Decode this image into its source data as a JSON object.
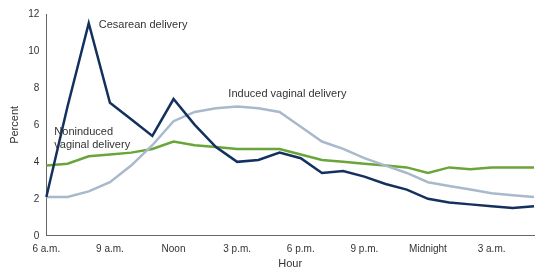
{
  "chart_data": {
    "type": "line",
    "x_label": "Hour",
    "y_label": "Percent",
    "categories": [
      "6 a.m.",
      null,
      null,
      "9 a.m.",
      null,
      null,
      "Noon",
      null,
      null,
      "3 p.m.",
      null,
      null,
      "6 p.m.",
      null,
      null,
      "9 p.m.",
      null,
      null,
      "Midnight",
      null,
      null,
      "3 a.m.",
      null,
      null
    ],
    "series": [
      {
        "name": "Cesarean delivery",
        "color": "#13305e",
        "values": [
          2.1,
          7.0,
          11.5,
          7.2,
          6.3,
          5.4,
          7.4,
          6.0,
          4.8,
          4.0,
          4.1,
          4.5,
          4.2,
          3.4,
          3.5,
          3.2,
          2.8,
          2.5,
          2.0,
          1.8,
          1.7,
          1.6,
          1.5,
          1.6
        ]
      },
      {
        "name": "Induced vaginal delivery",
        "color": "#a9b9cc",
        "values": [
          2.1,
          2.1,
          2.4,
          2.9,
          3.8,
          4.9,
          6.2,
          6.7,
          6.9,
          7.0,
          6.9,
          6.7,
          5.9,
          5.1,
          4.7,
          4.2,
          3.8,
          3.4,
          2.9,
          2.7,
          2.5,
          2.3,
          2.2,
          2.1
        ]
      },
      {
        "name": "Noninduced vaginal delivery",
        "color": "#6aa53a",
        "values": [
          3.8,
          3.9,
          4.3,
          4.4,
          4.5,
          4.7,
          5.1,
          4.9,
          4.8,
          4.7,
          4.7,
          4.7,
          4.4,
          4.1,
          4.0,
          3.9,
          3.8,
          3.7,
          3.4,
          3.7,
          3.6,
          3.7,
          3.7,
          3.7
        ]
      }
    ],
    "ylim": [
      0,
      12
    ],
    "yticks": [
      0,
      2,
      4,
      6,
      8,
      10,
      12
    ],
    "grid": false
  }
}
